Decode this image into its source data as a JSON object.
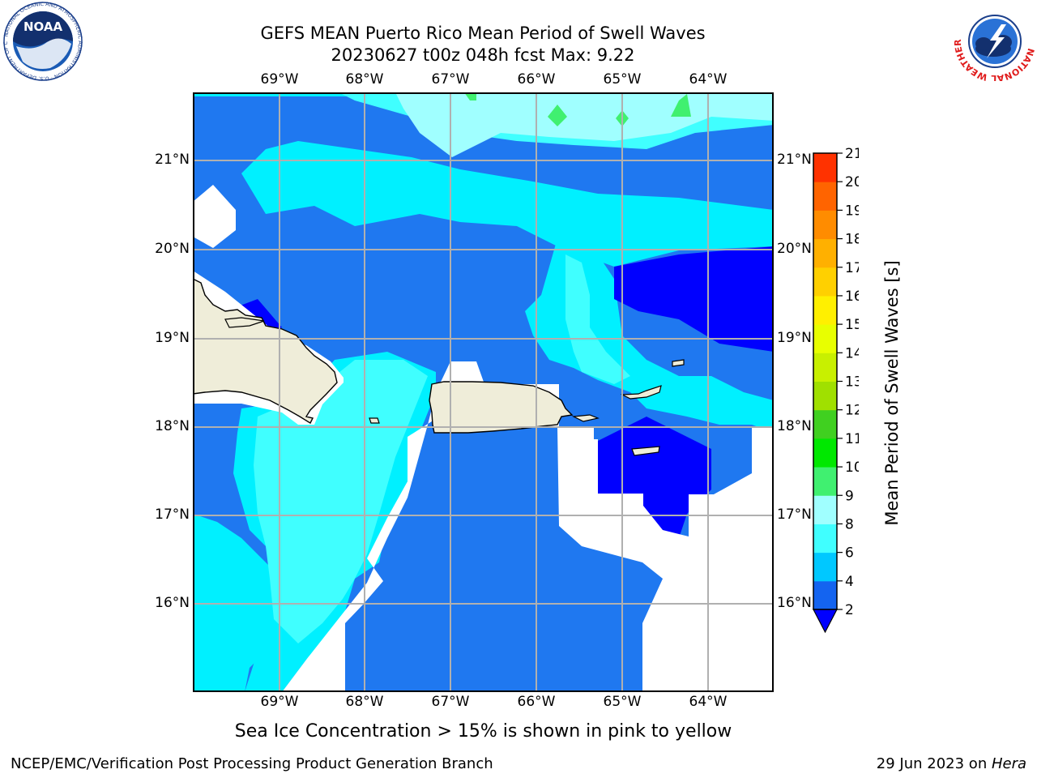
{
  "header": {
    "title_line1": "GEFS MEAN Puerto Rico Mean Period of Swell Waves",
    "title_line2": "20230627 t00z 048h fcst   Max: 9.22"
  },
  "logos": {
    "left": "noaa-logo",
    "left_text": "NOAA",
    "left_ring_text": "NATIONAL OCEANIC AND ATMOSPHERIC ADMINISTRATION · U.S. DEPARTMENT OF COMMERCE",
    "right": "nws-logo",
    "right_ring_text": "NATIONAL WEATHER SERVICE"
  },
  "map": {
    "lon_labels": [
      "69°W",
      "68°W",
      "67°W",
      "66°W",
      "65°W",
      "64°W"
    ],
    "lat_labels": [
      "21°N",
      "20°N",
      "19°N",
      "18°N",
      "17°N",
      "16°N"
    ],
    "colors": {
      "ocean_low": "#0000ff",
      "band_2_4": "#1f78f0",
      "band_4_6": "#00f0ff",
      "band_6_8": "#40ffff",
      "band_8_9": "#a0ffff",
      "band_9_10": "#40f070",
      "land": "#efedd9",
      "grid": "#b0b0b0"
    }
  },
  "colorbar": {
    "label": "Mean Period of Swell Waves [s]",
    "ticks": [
      "2",
      "4",
      "6",
      "8",
      "9",
      "10",
      "11",
      "12",
      "13",
      "14",
      "15",
      "16",
      "17",
      "18",
      "19",
      "20",
      "21"
    ],
    "colors": [
      "#1464f0",
      "#00c8ff",
      "#40ffff",
      "#a0ffff",
      "#40f070",
      "#00e800",
      "#40d020",
      "#a0e000",
      "#c8f000",
      "#e8ff00",
      "#fff000",
      "#ffd000",
      "#ffb000",
      "#ff8c00",
      "#ff6400",
      "#ff3200",
      "#ff0000"
    ],
    "under_color": "#0000ff"
  },
  "caption": "Sea Ice Concentration > 15% is shown in pink to yellow",
  "footer": {
    "left": "NCEP/EMC/Verification Post Processing Product Generation Branch",
    "right_date": "29 Jun 2023 on ",
    "right_host": "Hera"
  }
}
